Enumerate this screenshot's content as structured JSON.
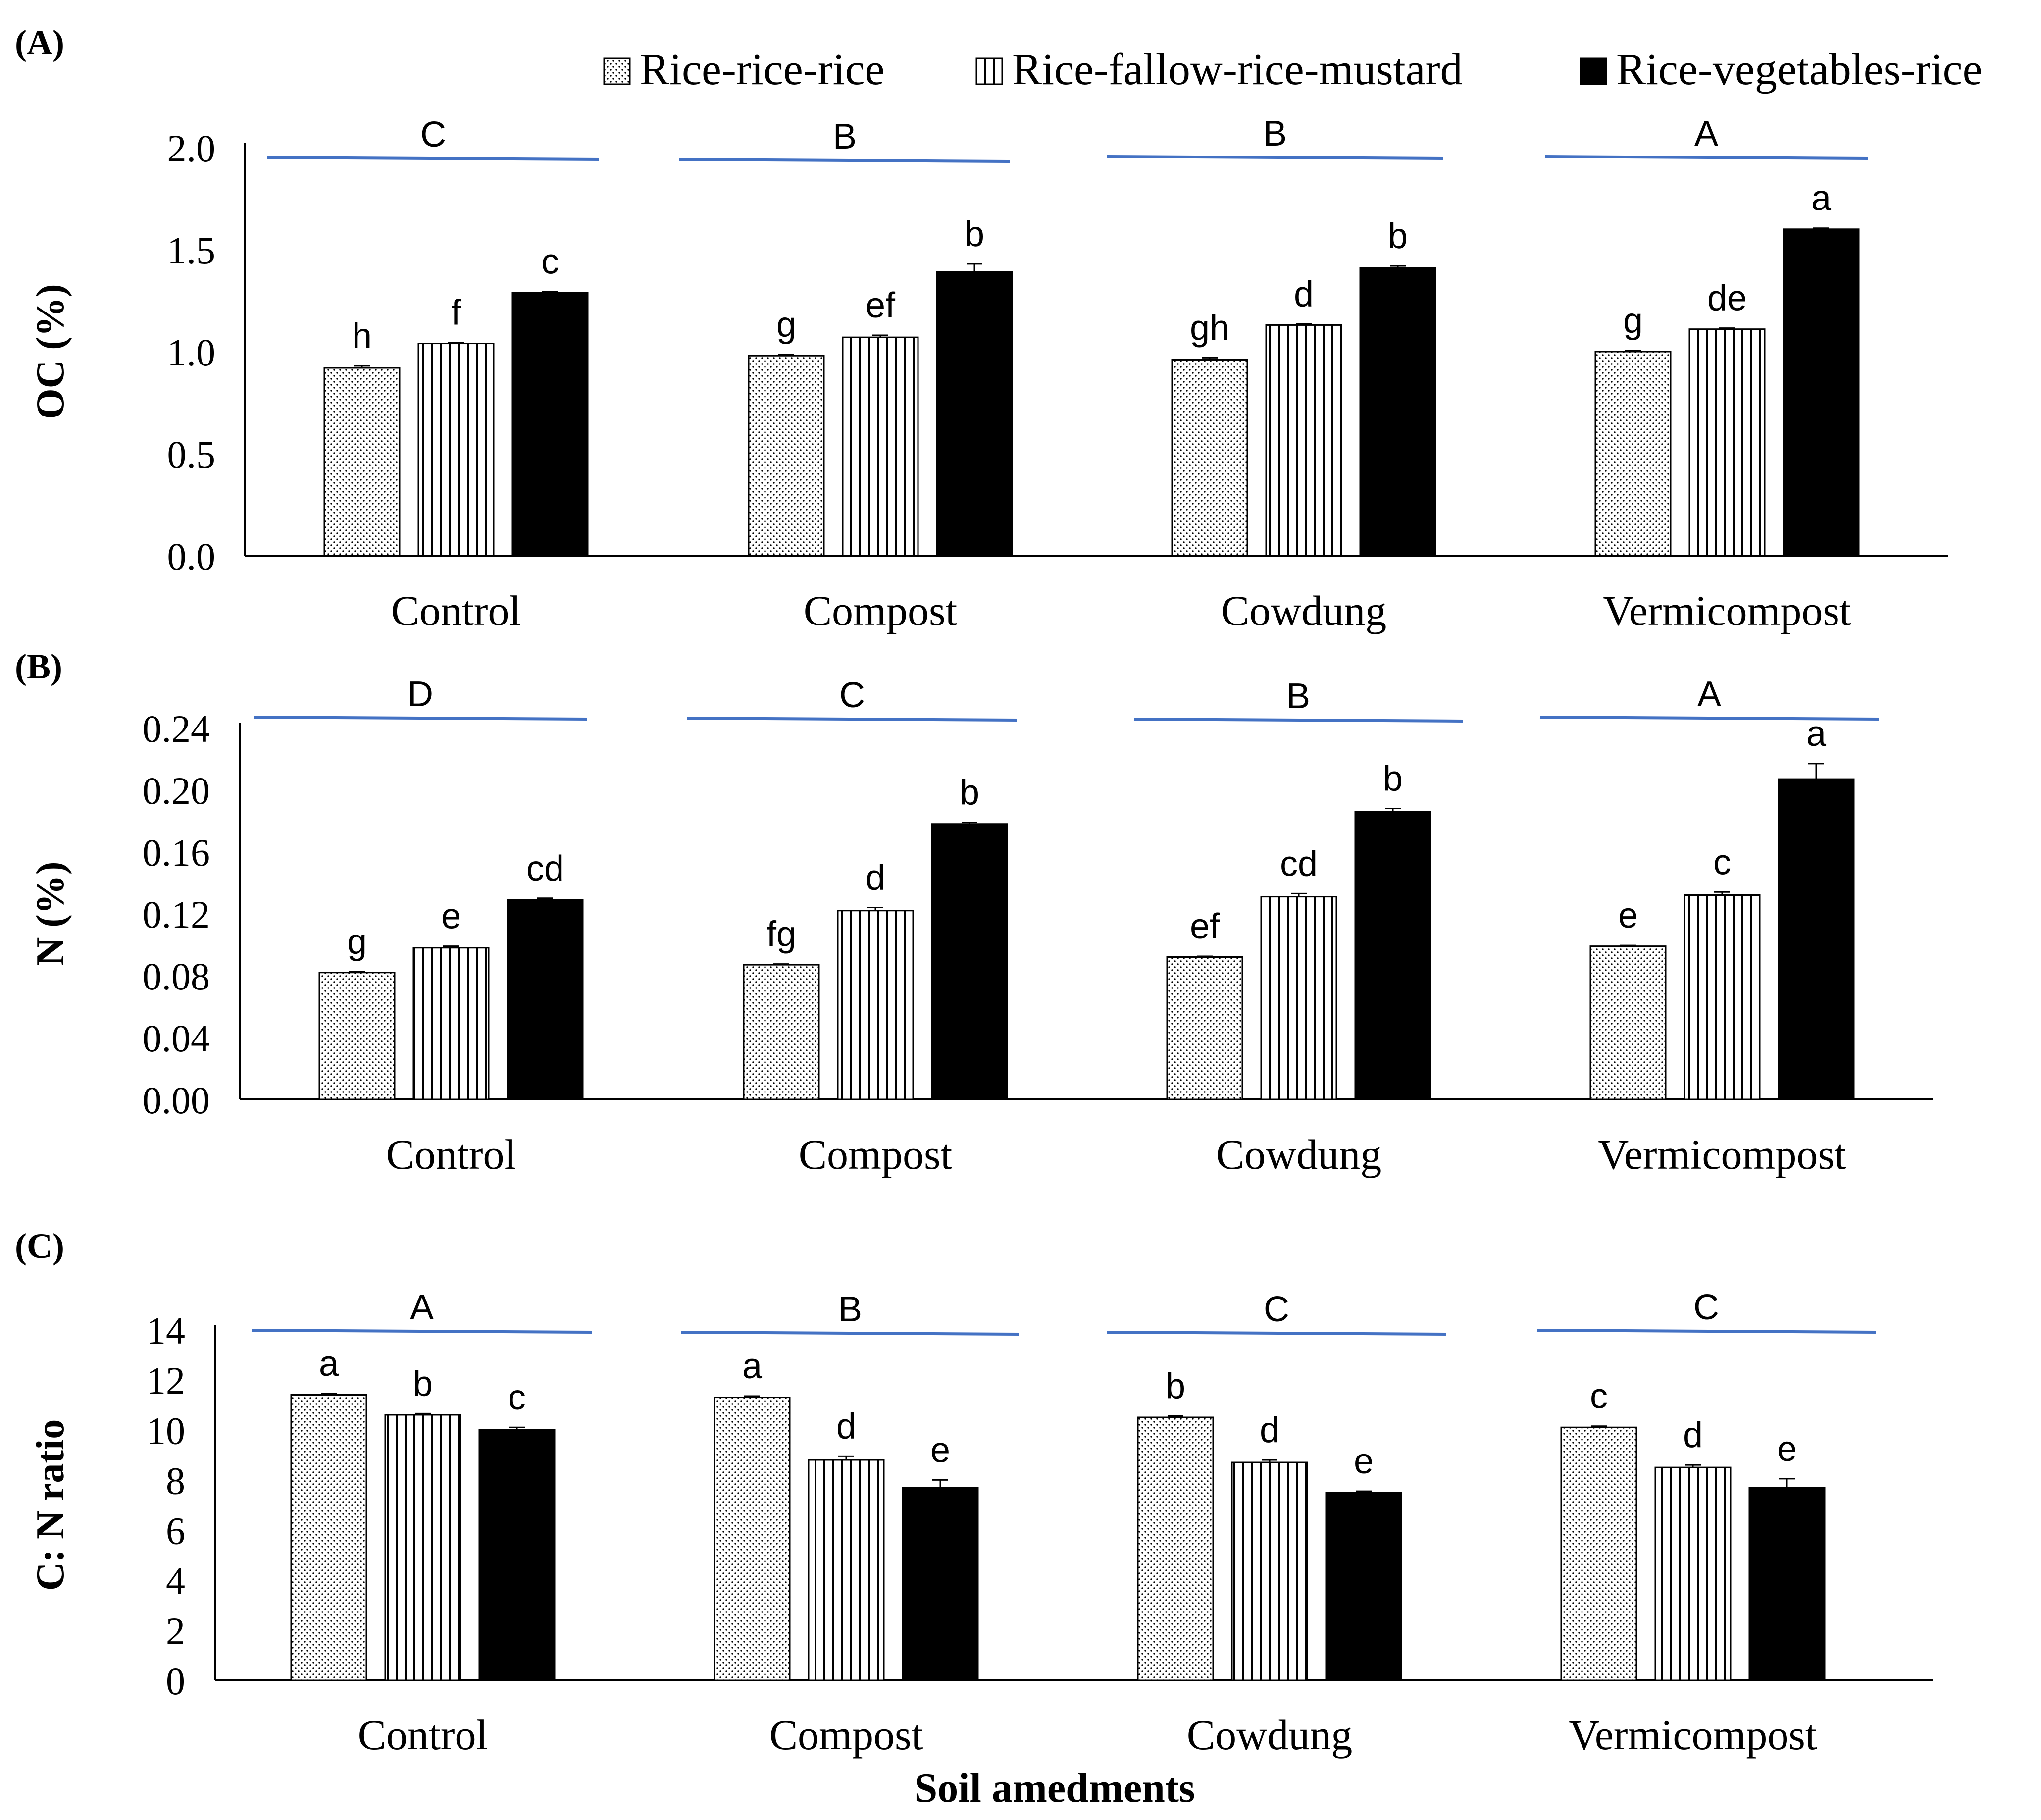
{
  "legend": {
    "items": [
      {
        "label": "Rice-rice-rice",
        "pattern": "dots"
      },
      {
        "label": "Rice-fallow-rice-mustard",
        "pattern": "vlines"
      },
      {
        "label": "Rice-vegetables-rice",
        "pattern": "solid"
      }
    ]
  },
  "xlabel": "Soil amedments",
  "colors": {
    "group_line": "#4472C4",
    "axis": "#000000",
    "solid_bar": "#000000"
  },
  "chart_data": [
    {
      "type": "bar",
      "panel_label": "(A)",
      "ylabel": "OC  (%)",
      "ylim": [
        0,
        2.0
      ],
      "yticks": [
        "0.0",
        "0.5",
        "1.0",
        "1.5",
        "2.0"
      ],
      "categories": [
        "Control",
        "Compost",
        "Cowdung",
        "Vermicompost"
      ],
      "group_letters": [
        "C",
        "B",
        "B",
        "A"
      ],
      "series": [
        {
          "name": "Rice-rice-rice",
          "values": [
            0.92,
            0.98,
            0.96,
            1.0
          ],
          "errors": [
            0.01,
            0.005,
            0.01,
            0.005
          ],
          "letters": [
            "h",
            "g",
            "gh",
            "g"
          ]
        },
        {
          "name": "Rice-fallow-rice-mustard",
          "values": [
            1.04,
            1.07,
            1.13,
            1.11
          ],
          "errors": [
            0.005,
            0.01,
            0.005,
            0.005
          ],
          "letters": [
            "f",
            "ef",
            "d",
            "de"
          ]
        },
        {
          "name": "Rice-vegetables-rice",
          "values": [
            1.29,
            1.39,
            1.41,
            1.6
          ],
          "errors": [
            0.005,
            0.04,
            0.01,
            0.005
          ],
          "letters": [
            "c",
            "b",
            "b",
            "a"
          ]
        }
      ]
    },
    {
      "type": "bar",
      "panel_label": "(B)",
      "ylabel": "N (%)",
      "ylim": [
        0,
        0.24
      ],
      "yticks": [
        "0.00",
        "0.04",
        "0.08",
        "0.12",
        "0.16",
        "0.20",
        "0.24"
      ],
      "categories": [
        "Control",
        "Compost",
        "Cowdung",
        "Vermicompost"
      ],
      "group_letters": [
        "D",
        "C",
        "B",
        "A"
      ],
      "series": [
        {
          "name": "Rice-rice-rice",
          "values": [
            0.082,
            0.087,
            0.092,
            0.099
          ],
          "errors": [
            0.0005,
            0.0005,
            0.0005,
            0.0005
          ],
          "letters": [
            "g",
            "fg",
            "ef",
            "e"
          ]
        },
        {
          "name": "Rice-fallow-rice-mustard",
          "values": [
            0.098,
            0.122,
            0.131,
            0.132
          ],
          "errors": [
            0.001,
            0.002,
            0.002,
            0.002
          ],
          "letters": [
            "e",
            "d",
            "cd",
            "c"
          ]
        },
        {
          "name": "Rice-vegetables-rice",
          "values": [
            0.129,
            0.178,
            0.186,
            0.207
          ],
          "errors": [
            0.001,
            0.001,
            0.002,
            0.01
          ],
          "letters": [
            "cd",
            "b",
            "b",
            "a"
          ]
        }
      ]
    },
    {
      "type": "bar",
      "panel_label": "(C)",
      "ylabel": "C: N ratio",
      "ylim": [
        0,
        14
      ],
      "yticks": [
        "0",
        "2",
        "4",
        "6",
        "8",
        "10",
        "12",
        "14"
      ],
      "categories": [
        "Control",
        "Compost",
        "Cowdung",
        "Vermicompost"
      ],
      "group_letters": [
        "A",
        "B",
        "C",
        "C"
      ],
      "series": [
        {
          "name": "Rice-rice-rice",
          "values": [
            11.4,
            11.3,
            10.5,
            10.1
          ],
          "errors": [
            0.05,
            0.05,
            0.05,
            0.05
          ],
          "letters": [
            "a",
            "a",
            "b",
            "c"
          ]
        },
        {
          "name": "Rice-fallow-rice-mustard",
          "values": [
            10.6,
            8.8,
            8.7,
            8.5
          ],
          "errors": [
            0.05,
            0.15,
            0.1,
            0.1
          ],
          "letters": [
            "b",
            "d",
            "d",
            "d"
          ]
        },
        {
          "name": "Rice-vegetables-rice",
          "values": [
            10.0,
            7.7,
            7.5,
            7.7
          ],
          "errors": [
            0.1,
            0.3,
            0.05,
            0.35
          ],
          "letters": [
            "c",
            "e",
            "e",
            "e"
          ]
        }
      ]
    }
  ]
}
